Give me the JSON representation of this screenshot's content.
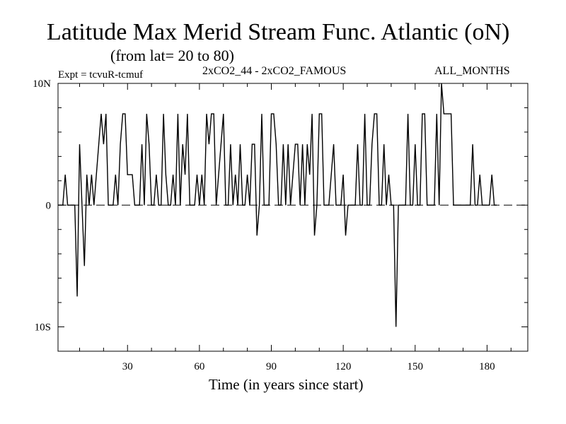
{
  "header": {
    "title": "Latitude Max Merid Stream Func. Atlantic (oN)",
    "subtitle": "(from lat= 20 to 80)",
    "expt": "Expt = tcvuR-tcmuf",
    "comparison": "2xCO2_44 - 2xCO2_FAMOUS",
    "period": "ALL_MONTHS"
  },
  "chart_data": {
    "type": "line",
    "title": "Latitude Max Merid Stream Func. Atlantic (oN)",
    "subtitle": "(from lat= 20 to 80)",
    "xlabel": "Time (in years since start)",
    "ylabel": "",
    "xlim": [
      1,
      197
    ],
    "ylim": [
      -12,
      10
    ],
    "x_ticks": [
      30,
      60,
      90,
      120,
      150,
      180
    ],
    "x_tick_labels": [
      "30",
      "60",
      "90",
      "120",
      "150",
      "180"
    ],
    "y_ticks": [
      10,
      0,
      -10
    ],
    "y_tick_labels": [
      "10N",
      "0",
      "10S"
    ],
    "zero_line": "dashed",
    "grid": false,
    "series": [
      {
        "values": [
          [
            1,
            0
          ],
          [
            3,
            0
          ],
          [
            4,
            2.5
          ],
          [
            5,
            0
          ],
          [
            7,
            0
          ],
          [
            8,
            0
          ],
          [
            9,
            -7.5
          ],
          [
            10,
            5
          ],
          [
            11,
            0
          ],
          [
            12,
            -5
          ],
          [
            13,
            2.5
          ],
          [
            14,
            0
          ],
          [
            15,
            2.5
          ],
          [
            16,
            0
          ],
          [
            17,
            2.5
          ],
          [
            18,
            5
          ],
          [
            19,
            7.5
          ],
          [
            20,
            5
          ],
          [
            21,
            7.5
          ],
          [
            22,
            0
          ],
          [
            23,
            0
          ],
          [
            24,
            0
          ],
          [
            25,
            2.5
          ],
          [
            26,
            0
          ],
          [
            27,
            5
          ],
          [
            28,
            7.5
          ],
          [
            29,
            7.5
          ],
          [
            30,
            2.5
          ],
          [
            31,
            2.5
          ],
          [
            32,
            2.5
          ],
          [
            33,
            0
          ],
          [
            34,
            0
          ],
          [
            35,
            0
          ],
          [
            36,
            5
          ],
          [
            37,
            0
          ],
          [
            38,
            7.5
          ],
          [
            39,
            5
          ],
          [
            40,
            0
          ],
          [
            41,
            0
          ],
          [
            42,
            2.5
          ],
          [
            43,
            0
          ],
          [
            44,
            0
          ],
          [
            45,
            7.5
          ],
          [
            46,
            2.5
          ],
          [
            47,
            0
          ],
          [
            48,
            0
          ],
          [
            49,
            2.5
          ],
          [
            50,
            0
          ],
          [
            51,
            7.5
          ],
          [
            52,
            0
          ],
          [
            53,
            5
          ],
          [
            54,
            2.5
          ],
          [
            55,
            7.5
          ],
          [
            56,
            0
          ],
          [
            57,
            0
          ],
          [
            58,
            0
          ],
          [
            59,
            2.5
          ],
          [
            60,
            0
          ],
          [
            61,
            2.5
          ],
          [
            62,
            0
          ],
          [
            63,
            7.5
          ],
          [
            64,
            5
          ],
          [
            65,
            7.5
          ],
          [
            66,
            7.5
          ],
          [
            67,
            0
          ],
          [
            68,
            2.5
          ],
          [
            69,
            5
          ],
          [
            70,
            7.5
          ],
          [
            71,
            0
          ],
          [
            72,
            0
          ],
          [
            73,
            5
          ],
          [
            74,
            0
          ],
          [
            75,
            2.5
          ],
          [
            76,
            0
          ],
          [
            77,
            5
          ],
          [
            78,
            0
          ],
          [
            79,
            0
          ],
          [
            80,
            2.5
          ],
          [
            81,
            0
          ],
          [
            82,
            5
          ],
          [
            83,
            5
          ],
          [
            84,
            -2.5
          ],
          [
            85,
            0
          ],
          [
            86,
            7.5
          ],
          [
            87,
            0
          ],
          [
            88,
            0
          ],
          [
            89,
            0
          ],
          [
            90,
            7.5
          ],
          [
            91,
            7.5
          ],
          [
            92,
            5
          ],
          [
            93,
            0
          ],
          [
            94,
            0
          ],
          [
            95,
            5
          ],
          [
            96,
            0
          ],
          [
            97,
            5
          ],
          [
            98,
            0
          ],
          [
            99,
            2.5
          ],
          [
            100,
            5
          ],
          [
            101,
            5
          ],
          [
            102,
            0
          ],
          [
            103,
            5
          ],
          [
            104,
            0
          ],
          [
            105,
            5
          ],
          [
            106,
            2.5
          ],
          [
            107,
            7.5
          ],
          [
            108,
            -2.5
          ],
          [
            109,
            0
          ],
          [
            110,
            7.5
          ],
          [
            111,
            7.5
          ],
          [
            112,
            0
          ],
          [
            113,
            0
          ],
          [
            114,
            0
          ],
          [
            115,
            2.5
          ],
          [
            116,
            5
          ],
          [
            117,
            0
          ],
          [
            118,
            0
          ],
          [
            119,
            0
          ],
          [
            120,
            2.5
          ],
          [
            121,
            -2.5
          ],
          [
            122,
            0
          ],
          [
            123,
            0
          ],
          [
            124,
            0
          ],
          [
            125,
            0
          ],
          [
            126,
            5
          ],
          [
            127,
            0
          ],
          [
            128,
            0
          ],
          [
            129,
            7.5
          ],
          [
            130,
            0
          ],
          [
            131,
            0
          ],
          [
            132,
            5
          ],
          [
            133,
            7.5
          ],
          [
            134,
            7.5
          ],
          [
            135,
            0
          ],
          [
            136,
            0
          ],
          [
            137,
            5
          ],
          [
            138,
            0
          ],
          [
            139,
            2.5
          ],
          [
            140,
            0
          ],
          [
            141,
            0
          ],
          [
            142,
            -10
          ],
          [
            143,
            0
          ],
          [
            144,
            0
          ],
          [
            145,
            0
          ],
          [
            146,
            0
          ],
          [
            147,
            7.5
          ],
          [
            148,
            0
          ],
          [
            149,
            0
          ],
          [
            150,
            5
          ],
          [
            151,
            0
          ],
          [
            152,
            0
          ],
          [
            153,
            7.5
          ],
          [
            154,
            7.5
          ],
          [
            155,
            0
          ],
          [
            156,
            0
          ],
          [
            157,
            0
          ],
          [
            158,
            0
          ],
          [
            159,
            7.5
          ],
          [
            160,
            0
          ],
          [
            161,
            10
          ],
          [
            162,
            7.5
          ],
          [
            163,
            7.5
          ],
          [
            164,
            7.5
          ],
          [
            165,
            7.5
          ],
          [
            166,
            0
          ],
          [
            167,
            0
          ],
          [
            168,
            0
          ],
          [
            169,
            0
          ],
          [
            170,
            0
          ],
          [
            171,
            0
          ],
          [
            172,
            0
          ],
          [
            173,
            0
          ],
          [
            174,
            5
          ],
          [
            175,
            0
          ],
          [
            176,
            0
          ],
          [
            177,
            2.5
          ],
          [
            178,
            0
          ],
          [
            179,
            0
          ],
          [
            180,
            0
          ],
          [
            181,
            0
          ],
          [
            182,
            2.5
          ],
          [
            183,
            0
          ],
          [
            184,
            0
          ]
        ]
      }
    ]
  }
}
